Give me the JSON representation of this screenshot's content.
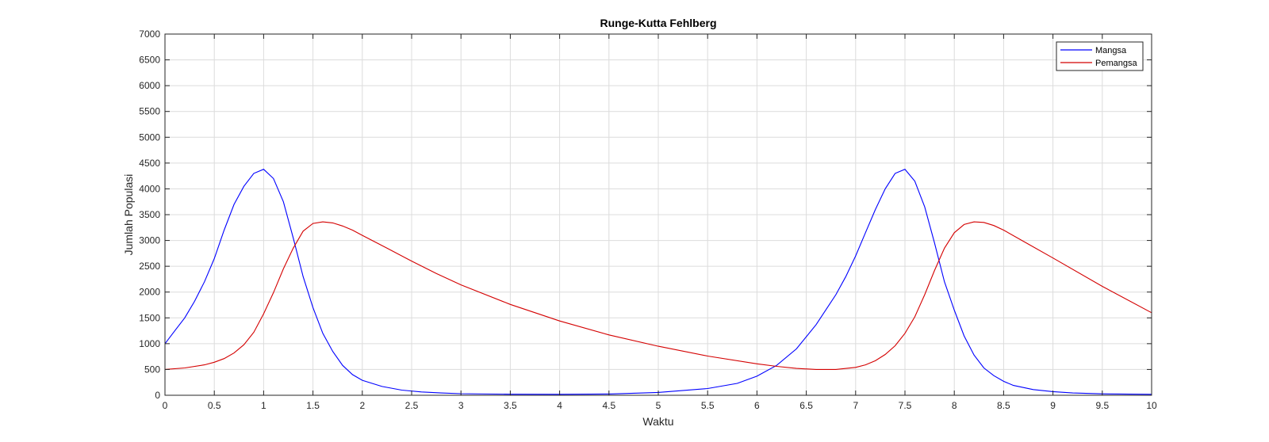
{
  "chart_data": {
    "type": "line",
    "title": "Runge-Kutta Fehlberg",
    "xlabel": "Waktu",
    "ylabel": "Jumlah Populasi",
    "xlim": [
      0,
      10
    ],
    "ylim": [
      0,
      7000
    ],
    "xticks": [
      "0",
      "0.5",
      "1",
      "1.5",
      "2",
      "2.5",
      "3",
      "3.5",
      "4",
      "4.5",
      "5",
      "5.5",
      "6",
      "6.5",
      "7",
      "7.5",
      "8",
      "8.5",
      "9",
      "9.5",
      "10"
    ],
    "yticks": [
      "0",
      "500",
      "1000",
      "1500",
      "2000",
      "2500",
      "3000",
      "3500",
      "4000",
      "4500",
      "5000",
      "5500",
      "6000",
      "6500",
      "7000"
    ],
    "grid": true,
    "legend_position": "top-right",
    "series": [
      {
        "name": "Mangsa",
        "color": "#0000ff",
        "x": [
          0,
          0.1,
          0.2,
          0.3,
          0.4,
          0.5,
          0.6,
          0.7,
          0.8,
          0.9,
          1.0,
          1.1,
          1.2,
          1.3,
          1.4,
          1.5,
          1.6,
          1.7,
          1.8,
          1.9,
          2.0,
          2.2,
          2.4,
          2.6,
          2.8,
          3.0,
          3.5,
          4.0,
          4.5,
          5.0,
          5.5,
          5.8,
          6.0,
          6.2,
          6.4,
          6.6,
          6.8,
          6.9,
          7.0,
          7.1,
          7.2,
          7.3,
          7.4,
          7.5,
          7.6,
          7.7,
          7.8,
          7.9,
          8.0,
          8.1,
          8.2,
          8.3,
          8.4,
          8.5,
          8.6,
          8.8,
          9.0,
          9.2,
          9.5,
          10.0
        ],
        "values": [
          1000,
          1250,
          1500,
          1820,
          2200,
          2650,
          3200,
          3700,
          4050,
          4300,
          4380,
          4200,
          3750,
          3050,
          2300,
          1700,
          1200,
          850,
          580,
          400,
          290,
          170,
          100,
          65,
          45,
          30,
          20,
          18,
          25,
          55,
          130,
          230,
          370,
          580,
          900,
          1370,
          1950,
          2300,
          2700,
          3150,
          3600,
          4000,
          4300,
          4380,
          4150,
          3650,
          2950,
          2200,
          1650,
          1150,
          780,
          530,
          380,
          270,
          190,
          110,
          70,
          45,
          28,
          18
        ]
      },
      {
        "name": "Pemangsa",
        "color": "#d40000",
        "x": [
          0,
          0.2,
          0.4,
          0.5,
          0.6,
          0.7,
          0.8,
          0.9,
          1.0,
          1.1,
          1.2,
          1.3,
          1.4,
          1.5,
          1.6,
          1.7,
          1.8,
          1.9,
          2.0,
          2.25,
          2.5,
          2.75,
          3.0,
          3.5,
          4.0,
          4.5,
          5.0,
          5.5,
          6.0,
          6.2,
          6.4,
          6.6,
          6.8,
          7.0,
          7.1,
          7.2,
          7.3,
          7.4,
          7.5,
          7.6,
          7.7,
          7.8,
          7.9,
          8.0,
          8.1,
          8.2,
          8.3,
          8.4,
          8.5,
          8.75,
          9.0,
          9.5,
          10.0
        ],
        "values": [
          500,
          530,
          590,
          640,
          710,
          820,
          980,
          1220,
          1580,
          1990,
          2450,
          2850,
          3180,
          3330,
          3360,
          3340,
          3280,
          3200,
          3100,
          2850,
          2600,
          2360,
          2140,
          1760,
          1440,
          1170,
          950,
          760,
          610,
          560,
          520,
          500,
          500,
          540,
          590,
          670,
          790,
          960,
          1200,
          1520,
          1950,
          2420,
          2850,
          3150,
          3310,
          3360,
          3350,
          3290,
          3200,
          2930,
          2660,
          2110,
          1600
        ]
      }
    ]
  }
}
